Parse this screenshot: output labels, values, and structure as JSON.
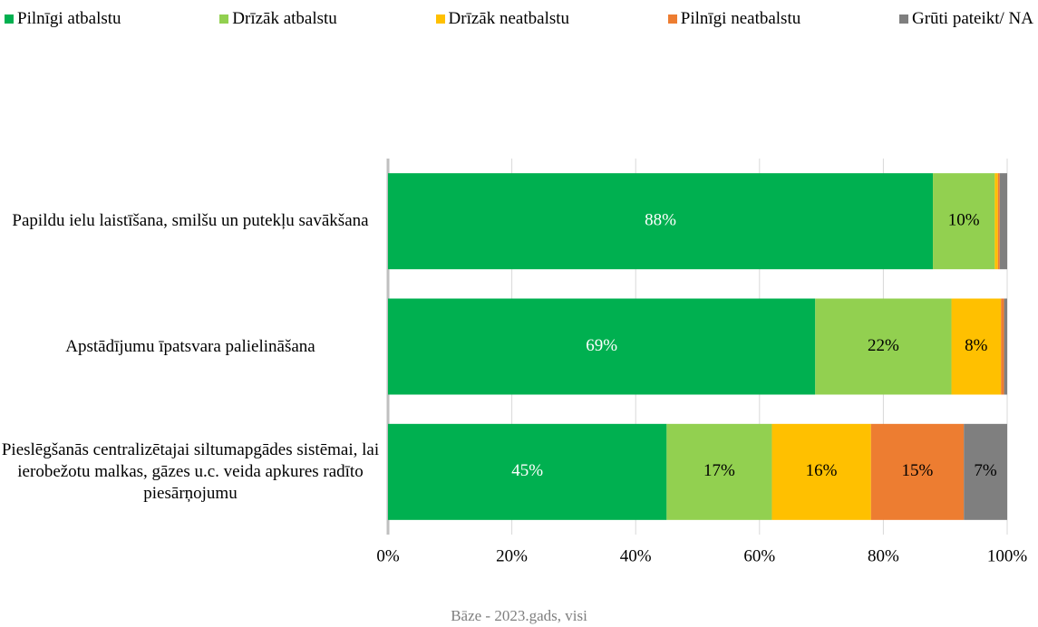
{
  "chart_data": {
    "type": "stacked-bar-horizontal",
    "categories": [
      "Papildu ielu laistīšana, smilšu un putekļu savākšana",
      "Apstādījumu īpatsvara palielināšana",
      "Pieslēgšanās centralizētajai siltumapgādes sistēmai, lai ierobežotu malkas, gāzes u.c. veida apkures radīto piesārņojumu"
    ],
    "series": [
      {
        "name": "Pilnīgi atbalstu",
        "color": "#00b050",
        "values": [
          88,
          69,
          45
        ],
        "value_labels": [
          "88%",
          "69%",
          "45%"
        ]
      },
      {
        "name": "Drīzāk atbalstu",
        "color": "#92d050",
        "values": [
          10,
          22,
          17
        ],
        "value_labels": [
          "10%",
          "22%",
          "17%"
        ]
      },
      {
        "name": "Drīzāk neatbalstu",
        "color": "#ffc000",
        "values": [
          0.5,
          8,
          16
        ],
        "value_labels": [
          null,
          "8%",
          "16%"
        ]
      },
      {
        "name": "Pilnīgi neatbalstu",
        "color": "#ed7d31",
        "values": [
          0.3,
          0.5,
          15
        ],
        "value_labels": [
          null,
          null,
          "15%"
        ]
      },
      {
        "name": "Grūti pateikt/ NA",
        "color": "#7f7f7f",
        "values": [
          1.2,
          0.5,
          7
        ],
        "value_labels": [
          null,
          null,
          "7%"
        ]
      }
    ],
    "xlim": [
      0,
      100
    ],
    "xticks": [
      {
        "value": 0,
        "label": "0%"
      },
      {
        "value": 20,
        "label": "20%"
      },
      {
        "value": 40,
        "label": "40%"
      },
      {
        "value": 60,
        "label": "60%"
      },
      {
        "value": 80,
        "label": "80%"
      },
      {
        "value": 100,
        "label": "100%"
      }
    ],
    "grid": true,
    "legend": "top",
    "footnote": "Bāze - 2023.gads, visi"
  }
}
